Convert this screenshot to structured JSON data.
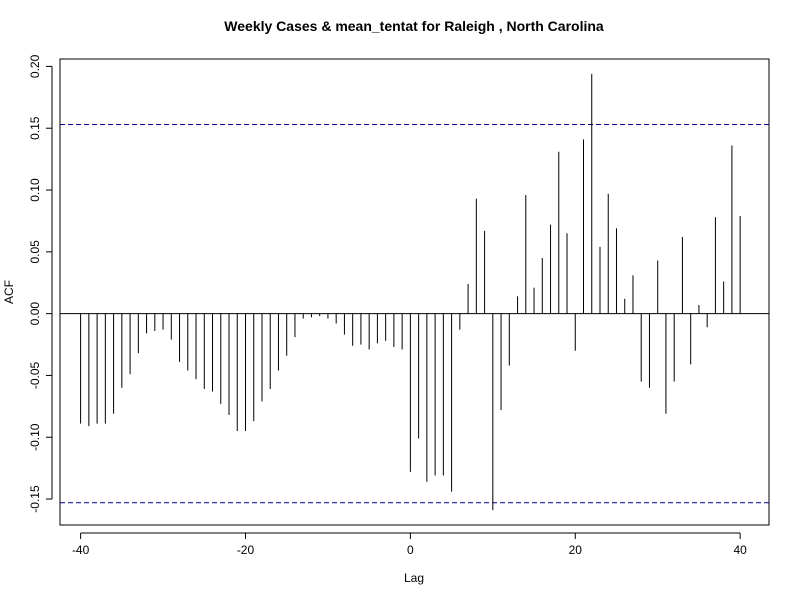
{
  "chart_data": {
    "type": "bar",
    "title": "Weekly Cases & mean_tentat for Raleigh , North Carolina",
    "xlabel": "Lag",
    "ylabel": "ACF",
    "xlim": [
      -42.5,
      43.5
    ],
    "ylim": [
      -0.171,
      0.206
    ],
    "x_ticks": [
      -40,
      -20,
      0,
      20,
      40
    ],
    "x_tick_labels": [
      "-40",
      "-20",
      "0",
      "20",
      "40"
    ],
    "y_ticks": [
      -0.15,
      -0.1,
      -0.05,
      0.0,
      0.05,
      0.1,
      0.15,
      0.2
    ],
    "y_tick_labels": [
      "-0.15",
      "-0.10",
      "-0.05",
      "0.00",
      "0.05",
      "0.10",
      "0.15",
      "0.20"
    ],
    "confidence_limits": [
      0.153,
      -0.153
    ],
    "confidence_line_color": "#00008b",
    "line_color": "#000000",
    "grid": false,
    "lags": [
      -40,
      -39,
      -38,
      -37,
      -36,
      -35,
      -34,
      -33,
      -32,
      -31,
      -30,
      -29,
      -28,
      -27,
      -26,
      -25,
      -24,
      -23,
      -22,
      -21,
      -20,
      -19,
      -18,
      -17,
      -16,
      -15,
      -14,
      -13,
      -12,
      -11,
      -10,
      -9,
      -8,
      -7,
      -6,
      -5,
      -4,
      -3,
      -2,
      -1,
      0,
      1,
      2,
      3,
      4,
      5,
      6,
      7,
      8,
      9,
      10,
      11,
      12,
      13,
      14,
      15,
      16,
      17,
      18,
      19,
      20,
      21,
      22,
      23,
      24,
      25,
      26,
      27,
      28,
      29,
      30,
      31,
      32,
      33,
      34,
      35,
      36,
      37,
      38,
      39,
      40
    ],
    "acf": [
      -0.089,
      -0.091,
      -0.089,
      -0.089,
      -0.081,
      -0.06,
      -0.049,
      -0.032,
      -0.016,
      -0.014,
      -0.013,
      -0.021,
      -0.039,
      -0.046,
      -0.053,
      -0.061,
      -0.063,
      -0.073,
      -0.082,
      -0.095,
      -0.095,
      -0.087,
      -0.071,
      -0.061,
      -0.046,
      -0.034,
      -0.019,
      -0.004,
      -0.003,
      -0.002,
      -0.004,
      -0.008,
      -0.017,
      -0.026,
      -0.025,
      -0.029,
      -0.024,
      -0.022,
      -0.027,
      -0.029,
      -0.128,
      -0.101,
      -0.136,
      -0.131,
      -0.131,
      -0.144,
      -0.013,
      0.024,
      0.093,
      0.067,
      -0.159,
      -0.078,
      -0.042,
      0.014,
      0.096,
      0.021,
      0.045,
      0.072,
      0.131,
      0.065,
      -0.03,
      0.141,
      0.194,
      0.054,
      0.097,
      0.069,
      0.012,
      0.031,
      -0.055,
      -0.06,
      0.043,
      -0.081,
      -0.055,
      0.062,
      -0.041,
      0.007,
      -0.011,
      0.078,
      0.026,
      0.136,
      0.079
    ]
  }
}
